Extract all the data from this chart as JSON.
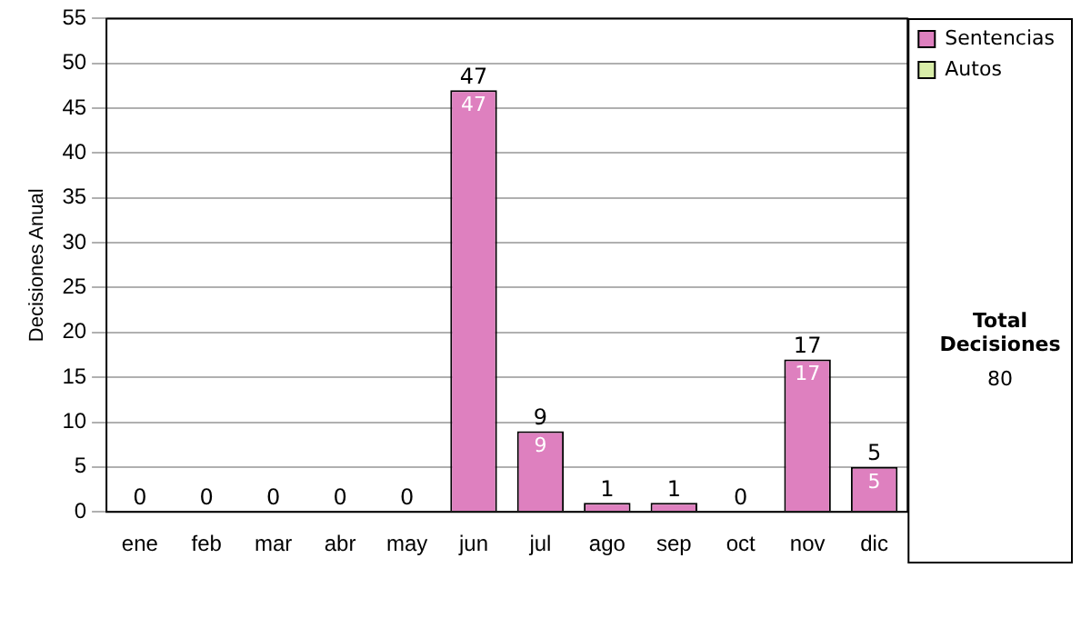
{
  "chart_data": {
    "type": "bar",
    "stacked": true,
    "ylabel": "Decisiones Anual",
    "categories": [
      "ene",
      "feb",
      "mar",
      "abr",
      "may",
      "jun",
      "jul",
      "ago",
      "sep",
      "oct",
      "nov",
      "dic"
    ],
    "series": [
      {
        "name": "Sentencias",
        "color": "#de80bf",
        "values": [
          0,
          0,
          0,
          0,
          0,
          47,
          9,
          1,
          1,
          0,
          17,
          5
        ],
        "value_labels": [
          null,
          null,
          null,
          null,
          null,
          "47",
          "9",
          null,
          null,
          null,
          "17",
          "5"
        ]
      },
      {
        "name": "Autos",
        "color": "#d8eda8",
        "values": [
          0,
          0,
          0,
          0,
          0,
          0,
          0,
          0,
          0,
          0,
          0,
          0
        ]
      }
    ],
    "totals": [
      "0",
      "0",
      "0",
      "0",
      "0",
      "47",
      "9",
      "1",
      "1",
      "0",
      "17",
      "5"
    ],
    "ylim": [
      0,
      55
    ],
    "yticks": [
      0,
      5,
      10,
      15,
      20,
      25,
      30,
      35,
      40,
      45,
      50,
      55
    ],
    "grid": "y",
    "legend": "right",
    "annotations": [
      "Total Decisiones",
      "80"
    ]
  }
}
